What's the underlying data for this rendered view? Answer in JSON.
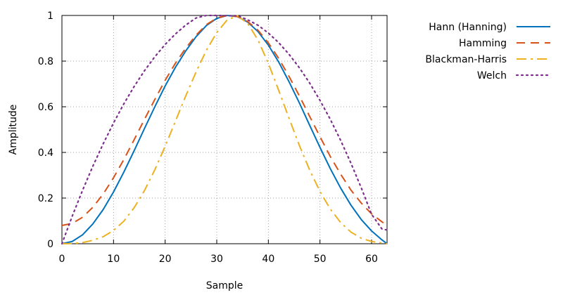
{
  "chart_data": {
    "type": "line",
    "title": "",
    "xlabel": "Sample",
    "ylabel": "Amplitude",
    "xlim": [
      0,
      63
    ],
    "ylim": [
      0,
      1
    ],
    "grid": true,
    "legend_position": "outside-right",
    "x_ticks": [
      0,
      10,
      20,
      30,
      40,
      50,
      60
    ],
    "y_ticks": [
      0,
      0.2,
      0.4,
      0.6,
      0.8,
      1
    ],
    "x_tick_labels": [
      "0",
      "10",
      "20",
      "30",
      "40",
      "50",
      "60"
    ],
    "y_tick_labels": [
      "0",
      "0.2",
      "0.4",
      "0.6",
      "0.8",
      "1"
    ],
    "x": [
      0,
      2,
      4,
      6,
      8,
      10,
      12,
      14,
      16,
      18,
      20,
      22,
      24,
      26,
      28,
      30,
      32,
      34,
      36,
      38,
      40,
      42,
      44,
      46,
      48,
      50,
      52,
      54,
      56,
      58,
      60,
      62,
      63
    ],
    "series": [
      {
        "name": "Hann (Hanning)",
        "color": "#0072bd",
        "dash": "solid",
        "values": [
          0,
          0.01,
          0.039,
          0.087,
          0.15,
          0.227,
          0.314,
          0.408,
          0.505,
          0.6,
          0.691,
          0.773,
          0.845,
          0.907,
          0.956,
          0.987,
          1.0,
          0.995,
          0.971,
          0.929,
          0.87,
          0.796,
          0.71,
          0.617,
          0.519,
          0.422,
          0.329,
          0.244,
          0.169,
          0.106,
          0.056,
          0.017,
          0.0
        ]
      },
      {
        "name": "Hamming",
        "color": "#d95319",
        "dash": "dashed",
        "values": [
          0.08,
          0.089,
          0.116,
          0.16,
          0.218,
          0.289,
          0.369,
          0.456,
          0.545,
          0.632,
          0.716,
          0.791,
          0.857,
          0.914,
          0.96,
          0.988,
          1.0,
          0.995,
          0.973,
          0.935,
          0.88,
          0.812,
          0.733,
          0.648,
          0.558,
          0.469,
          0.382,
          0.305,
          0.235,
          0.178,
          0.131,
          0.096,
          0.08
        ]
      },
      {
        "name": "Blackman-Harris",
        "color": "#edb120",
        "dash": "dashdot",
        "values": [
          0,
          0.001,
          0.005,
          0.015,
          0.031,
          0.058,
          0.099,
          0.158,
          0.233,
          0.324,
          0.427,
          0.537,
          0.648,
          0.753,
          0.848,
          0.925,
          0.98,
          0.999,
          0.965,
          0.892,
          0.79,
          0.672,
          0.55,
          0.431,
          0.323,
          0.229,
          0.152,
          0.093,
          0.051,
          0.024,
          0.01,
          0.003,
          0.0
        ]
      },
      {
        "name": "Welch",
        "color": "#7e2f8e",
        "dash": "dotted",
        "values": [
          0.0,
          0.121,
          0.234,
          0.34,
          0.438,
          0.529,
          0.613,
          0.689,
          0.758,
          0.819,
          0.873,
          0.919,
          0.958,
          0.989,
          1.0,
          1.0,
          0.999,
          0.999,
          0.981,
          0.957,
          0.923,
          0.881,
          0.83,
          0.771,
          0.704,
          0.628,
          0.545,
          0.453,
          0.353,
          0.245,
          0.129,
          0.065,
          0.06
        ]
      }
    ]
  }
}
